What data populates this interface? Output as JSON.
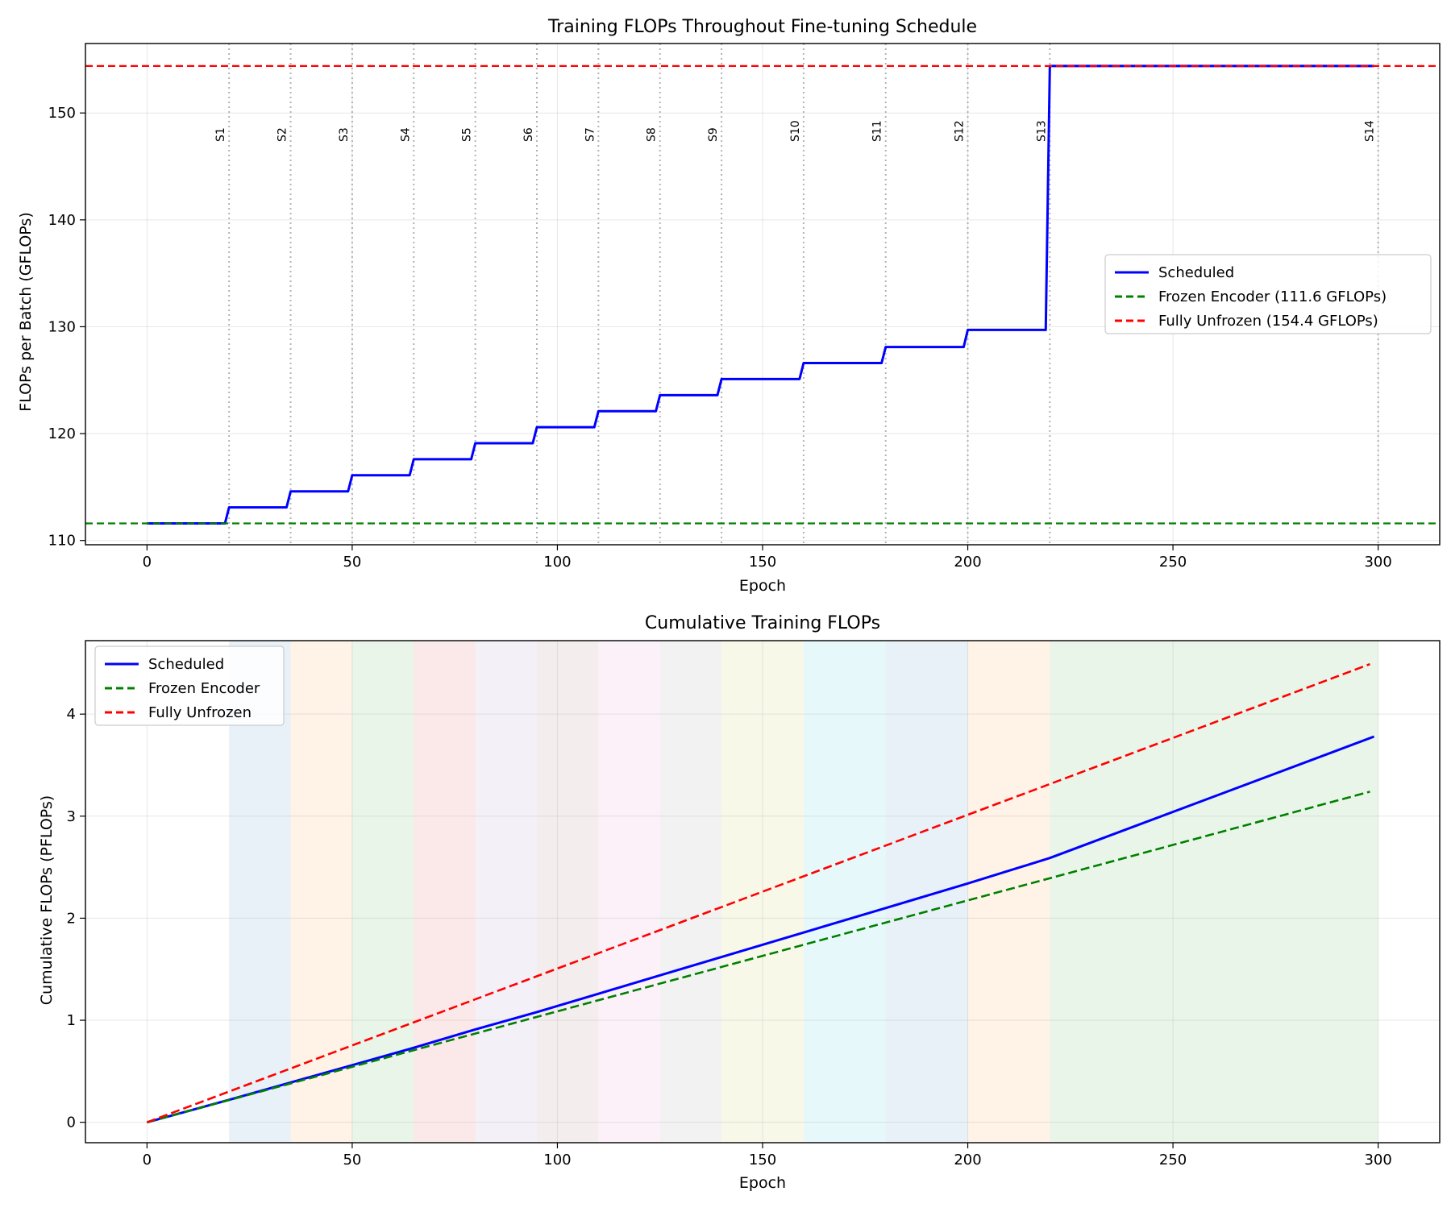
{
  "chart_data": [
    {
      "type": "line",
      "title": "Training FLOPs Throughout Fine-tuning Schedule",
      "xlabel": "Epoch",
      "ylabel": "FLOPs per Batch (GFLOPs)",
      "xlim": [
        -15,
        315
      ],
      "ylim": [
        109.6,
        156.5
      ],
      "xticks": [
        0,
        50,
        100,
        150,
        200,
        250,
        300
      ],
      "yticks": [
        110,
        120,
        130,
        140,
        150
      ],
      "grid": true,
      "legend_position": "center-right",
      "stage_lines": {
        "color": "#999999",
        "x": [
          20,
          35,
          50,
          65,
          80,
          95,
          110,
          125,
          140,
          160,
          180,
          200,
          220,
          300
        ],
        "labels": [
          "S1",
          "S2",
          "S3",
          "S4",
          "S5",
          "S6",
          "S7",
          "S8",
          "S9",
          "S10",
          "S11",
          "S12",
          "S13",
          "S14"
        ]
      },
      "series": [
        {
          "name": "Scheduled",
          "color": "#0000ff",
          "style": "solid",
          "x": [
            0,
            19,
            20,
            34,
            35,
            49,
            50,
            64,
            65,
            79,
            80,
            94,
            95,
            109,
            110,
            124,
            125,
            139,
            140,
            159,
            160,
            179,
            180,
            199,
            200,
            219,
            220,
            299
          ],
          "y": [
            111.6,
            111.6,
            113.1,
            113.1,
            114.6,
            114.6,
            116.1,
            116.1,
            117.6,
            117.6,
            119.1,
            119.1,
            120.6,
            120.6,
            122.1,
            122.1,
            123.6,
            123.6,
            125.1,
            125.1,
            126.6,
            126.6,
            128.1,
            128.1,
            129.7,
            129.7,
            154.4,
            154.4
          ]
        },
        {
          "name": "Frozen Encoder (111.6 GFLOPs)",
          "color": "#008000",
          "style": "dashed",
          "hline": 111.6
        },
        {
          "name": "Fully Unfrozen (154.4 GFLOPs)",
          "color": "#ff0000",
          "style": "dashed",
          "hline": 154.4
        }
      ]
    },
    {
      "type": "line",
      "title": "Cumulative Training FLOPs",
      "xlabel": "Epoch",
      "ylabel": "Cumulative FLOPs (PFLOPs)",
      "xlim": [
        -15,
        315
      ],
      "ylim": [
        -0.2,
        4.72
      ],
      "xticks": [
        0,
        50,
        100,
        150,
        200,
        250,
        300
      ],
      "yticks": [
        0,
        1,
        2,
        3,
        4
      ],
      "grid": true,
      "legend_position": "upper-left",
      "shaded_stages": [
        {
          "start": 20,
          "end": 35,
          "color": "#1f77b4"
        },
        {
          "start": 35,
          "end": 50,
          "color": "#ff7f0e"
        },
        {
          "start": 50,
          "end": 65,
          "color": "#2ca02c"
        },
        {
          "start": 65,
          "end": 80,
          "color": "#d62728"
        },
        {
          "start": 80,
          "end": 95,
          "color": "#9467bd"
        },
        {
          "start": 95,
          "end": 110,
          "color": "#8c564b"
        },
        {
          "start": 110,
          "end": 125,
          "color": "#e377c2"
        },
        {
          "start": 125,
          "end": 140,
          "color": "#7f7f7f"
        },
        {
          "start": 140,
          "end": 160,
          "color": "#bcbd22"
        },
        {
          "start": 160,
          "end": 180,
          "color": "#17becf"
        },
        {
          "start": 180,
          "end": 200,
          "color": "#1f77b4"
        },
        {
          "start": 200,
          "end": 220,
          "color": "#ff7f0e"
        },
        {
          "start": 220,
          "end": 300,
          "color": "#2ca02c"
        }
      ],
      "series": [
        {
          "name": "Scheduled",
          "color": "#0000ff",
          "style": "solid",
          "x": [
            0,
            20,
            35,
            50,
            65,
            80,
            95,
            110,
            125,
            140,
            160,
            180,
            200,
            220,
            299
          ],
          "y": [
            0.0,
            0.22,
            0.39,
            0.56,
            0.73,
            0.91,
            1.08,
            1.26,
            1.44,
            1.62,
            1.86,
            2.1,
            2.34,
            2.59,
            3.78
          ]
        },
        {
          "name": "Frozen Encoder",
          "color": "#008000",
          "style": "dashed",
          "x": [
            0,
            298
          ],
          "y": [
            0.0,
            3.24
          ]
        },
        {
          "name": "Fully Unfrozen",
          "color": "#ff0000",
          "style": "dashed",
          "x": [
            0,
            298
          ],
          "y": [
            0.0,
            4.49
          ]
        }
      ]
    }
  ]
}
